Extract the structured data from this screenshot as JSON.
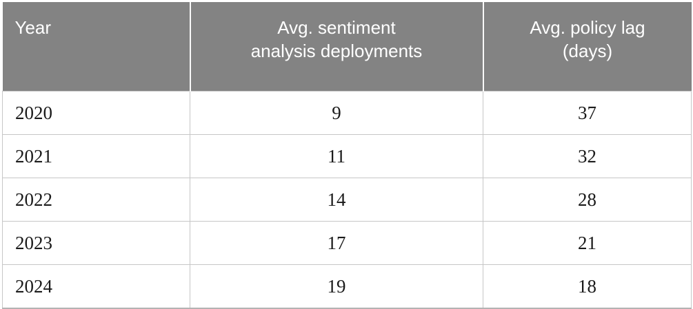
{
  "page": {
    "background_color": "#ffffff"
  },
  "table": {
    "columns": [
      {
        "label": "Year",
        "lines": [
          "Year"
        ],
        "align": "left"
      },
      {
        "label": "Avg. sentiment analysis deployments",
        "lines": [
          "Avg. sentiment",
          "analysis deployments"
        ],
        "align": "center"
      },
      {
        "label": "Avg. policy lag (days)",
        "lines": [
          "Avg. policy lag",
          "(days)"
        ],
        "align": "center"
      }
    ],
    "rows": [
      {
        "year": "2020",
        "deployments": "9",
        "policy_lag_days": "37"
      },
      {
        "year": "2021",
        "deployments": "11",
        "policy_lag_days": "32"
      },
      {
        "year": "2022",
        "deployments": "14",
        "policy_lag_days": "28"
      },
      {
        "year": "2023",
        "deployments": "17",
        "policy_lag_days": "21"
      },
      {
        "year": "2024",
        "deployments": "19",
        "policy_lag_days": "18"
      }
    ],
    "style": {
      "header_bg": "#838383",
      "header_text_color": "#ffffff",
      "header_divider_color": "#fafafa",
      "row_border_color": "#c6c6c6",
      "bottom_border_color": "#b3b3b3",
      "cell_text_color": "#1a1a1a"
    }
  },
  "chart_data": {
    "type": "table",
    "title": "",
    "columns": [
      "Year",
      "Avg. sentiment analysis deployments",
      "Avg. policy lag (days)"
    ],
    "rows": [
      [
        2020,
        9,
        37
      ],
      [
        2021,
        11,
        32
      ],
      [
        2022,
        14,
        28
      ],
      [
        2023,
        17,
        21
      ],
      [
        2024,
        19,
        18
      ]
    ]
  }
}
